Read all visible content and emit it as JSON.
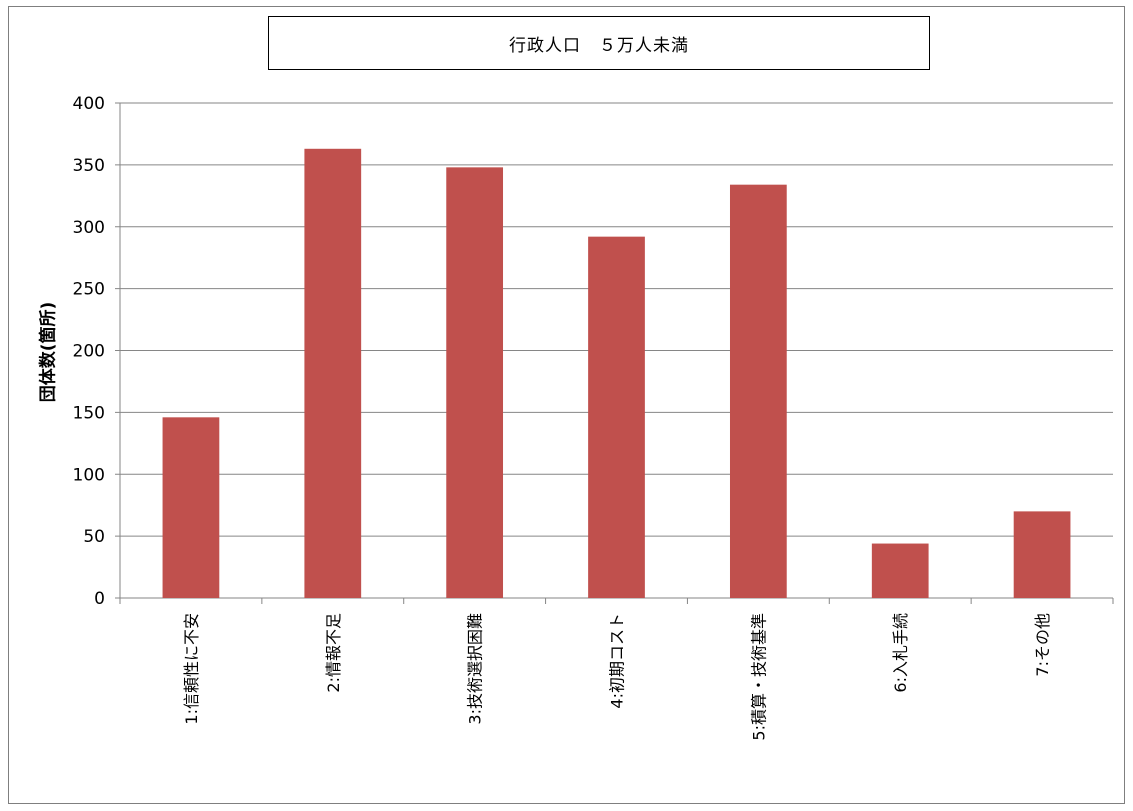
{
  "chart_data": {
    "type": "bar",
    "title": "行政人口　５万人未満",
    "ylabel": "団体数(箇所)",
    "xlabel": "",
    "categories": [
      "1:信頼性に不安",
      "2:情報不足",
      "3:技術選択困難",
      "4:初期コスト",
      "5:積算・技術基準",
      "6:入札手続",
      "7:その他"
    ],
    "values": [
      146,
      363,
      348,
      292,
      334,
      44,
      70
    ],
    "ylim": [
      0,
      400
    ],
    "yticks": [
      0,
      50,
      100,
      150,
      200,
      250,
      300,
      350,
      400
    ],
    "grid": true,
    "bar_color": "#c0504d",
    "legend": "none"
  }
}
